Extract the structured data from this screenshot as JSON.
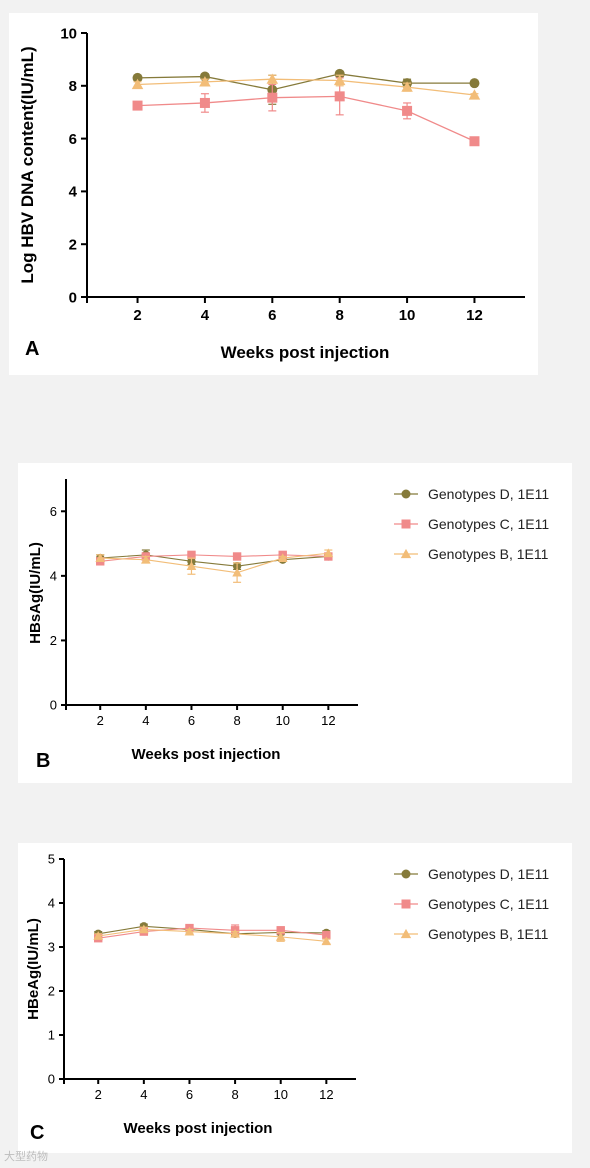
{
  "panels": [
    {
      "letter": "A"
    },
    {
      "letter": "B"
    },
    {
      "letter": "C"
    }
  ],
  "colors": {
    "genotype_d": "#857a3a",
    "genotype_c": "#f08a8a",
    "genotype_b": "#f2bd78"
  },
  "watermark": "大型药物",
  "chart_data": [
    {
      "type": "line",
      "panel": "A",
      "title": "",
      "xlabel": "Weeks post injection",
      "ylabel": "Log HBV DNA content(IU/mL)",
      "x": [
        2,
        4,
        6,
        8,
        10,
        12
      ],
      "xlim": [
        0.5,
        13.5
      ],
      "ylim": [
        0,
        10
      ],
      "yticks": [
        0,
        2,
        4,
        6,
        8,
        10
      ],
      "grid": false,
      "legend": "none",
      "series": [
        {
          "key": "d",
          "marker": "circle",
          "values": [
            8.3,
            8.35,
            7.85,
            8.45,
            8.1,
            8.1
          ],
          "err": [
            0.1,
            0.1,
            0.55,
            0.1,
            0.15,
            0.05
          ]
        },
        {
          "key": "c",
          "marker": "square",
          "values": [
            7.25,
            7.35,
            7.55,
            7.6,
            7.05,
            5.9
          ],
          "err": [
            0.1,
            0.35,
            0.5,
            0.7,
            0.3,
            0.05
          ]
        },
        {
          "key": "b",
          "marker": "triangle",
          "values": [
            8.05,
            8.15,
            8.25,
            8.2,
            7.95,
            7.65
          ],
          "err": [
            0.1,
            0.1,
            0.15,
            0.2,
            0.15,
            0.05
          ]
        }
      ]
    },
    {
      "type": "line",
      "panel": "B",
      "title": "",
      "xlabel": "Weeks post injection",
      "ylabel": "HBsAg(IU/mL)",
      "x": [
        2,
        4,
        6,
        8,
        10,
        12
      ],
      "xlim": [
        0.5,
        13.3
      ],
      "ylim": [
        0,
        7
      ],
      "yticks": [
        0,
        2,
        4,
        6
      ],
      "grid": false,
      "legend": "right",
      "series": [
        {
          "name": "Genotypes D, 1E11",
          "key": "d",
          "marker": "circle",
          "values": [
            4.55,
            4.65,
            4.45,
            4.3,
            4.5,
            4.6
          ],
          "err": [
            0.1,
            0.15,
            0.1,
            0.1,
            0.05,
            0.05
          ]
        },
        {
          "name": "Genotypes C, 1E11",
          "key": "c",
          "marker": "square",
          "values": [
            4.45,
            4.6,
            4.65,
            4.6,
            4.65,
            4.6
          ],
          "err": [
            0.05,
            0.05,
            0.05,
            0.05,
            0.05,
            0.05
          ]
        },
        {
          "name": "Genotypes B, 1E11",
          "key": "b",
          "marker": "triangle",
          "values": [
            4.55,
            4.5,
            4.3,
            4.1,
            4.55,
            4.7
          ],
          "err": [
            0.1,
            0.1,
            0.25,
            0.3,
            0.05,
            0.1
          ]
        }
      ]
    },
    {
      "type": "line",
      "panel": "C",
      "title": "",
      "xlabel": "Weeks post injection",
      "ylabel": "HBeAg(IU/mL)",
      "x": [
        2,
        4,
        6,
        8,
        10,
        12
      ],
      "xlim": [
        0.5,
        13.3
      ],
      "ylim": [
        0,
        5
      ],
      "yticks": [
        0,
        1,
        2,
        3,
        4,
        5
      ],
      "grid": false,
      "legend": "right",
      "series": [
        {
          "name": "Genotypes D, 1E11",
          "key": "d",
          "marker": "circle",
          "values": [
            3.3,
            3.47,
            3.4,
            3.3,
            3.33,
            3.32
          ],
          "err": [
            0.05,
            0.05,
            0.05,
            0.05,
            0.05,
            0.05
          ]
        },
        {
          "name": "Genotypes C, 1E11",
          "key": "c",
          "marker": "square",
          "values": [
            3.2,
            3.35,
            3.43,
            3.38,
            3.38,
            3.27
          ],
          "err": [
            0.05,
            0.05,
            0.05,
            0.12,
            0.05,
            0.05
          ]
        },
        {
          "name": "Genotypes B, 1E11",
          "key": "b",
          "marker": "triangle",
          "values": [
            3.25,
            3.4,
            3.35,
            3.3,
            3.23,
            3.13
          ],
          "err": [
            0.05,
            0.05,
            0.05,
            0.05,
            0.1,
            0.05
          ]
        }
      ]
    }
  ]
}
